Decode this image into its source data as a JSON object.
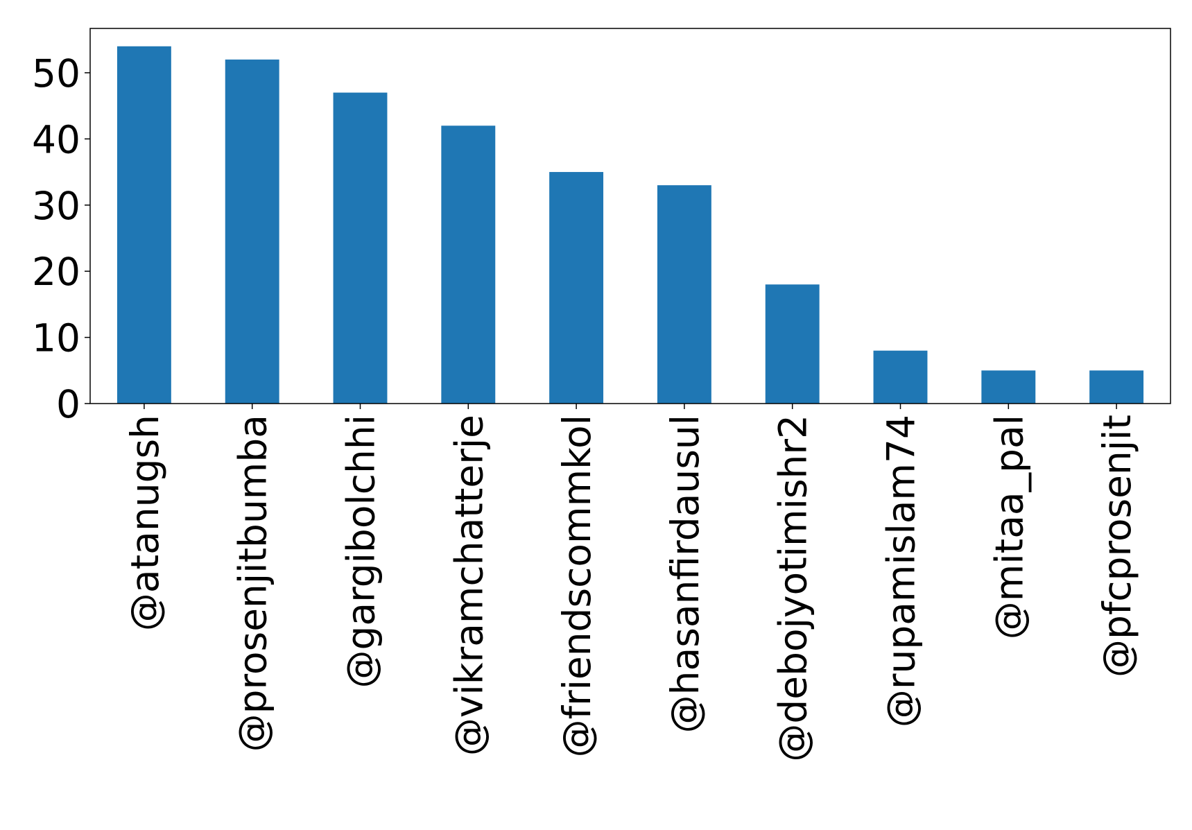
{
  "chart_data": {
    "type": "bar",
    "categories": [
      "@atanugsh",
      "@prosenjitbumba",
      "@gargibolchhi",
      "@vikramchatterje",
      "@friendscommkol",
      "@hasanfirdausul",
      "@debojyotimishr2",
      "@rupamislam74",
      "@mitaa_pal",
      "@pfcprosenjit"
    ],
    "values": [
      54,
      52,
      47,
      42,
      35,
      33,
      18,
      8,
      5,
      5
    ],
    "yticks": [
      0,
      10,
      20,
      30,
      40,
      50
    ],
    "ylim": [
      0,
      56.7
    ],
    "bar_color": "#1f77b4",
    "grid": false,
    "title": "",
    "xlabel": "",
    "ylabel": ""
  }
}
